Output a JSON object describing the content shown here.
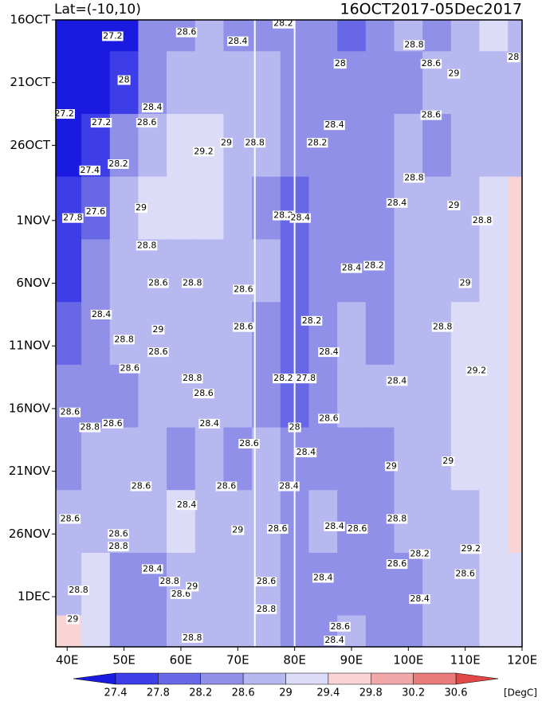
{
  "chart_data": {
    "type": "contour",
    "title": "Lat=(-10,10)",
    "subtitle": "16OCT2017-05Dec2017",
    "unit_label": "[DegC]",
    "x": [
      40,
      45,
      50,
      55,
      60,
      65,
      70,
      75,
      80,
      85,
      90,
      95,
      100,
      105,
      110,
      115,
      120
    ],
    "y": [
      0,
      5,
      10,
      15,
      20,
      25,
      30,
      35,
      40,
      45,
      50
    ],
    "xlim": [
      38,
      120
    ],
    "ylim": [
      0,
      50
    ],
    "xticks": [
      {
        "value": 40,
        "label": "40E"
      },
      {
        "value": 50,
        "label": "50E"
      },
      {
        "value": 60,
        "label": "60E"
      },
      {
        "value": 70,
        "label": "70E"
      },
      {
        "value": 80,
        "label": "80E"
      },
      {
        "value": 90,
        "label": "90E"
      },
      {
        "value": 100,
        "label": "100E"
      },
      {
        "value": 110,
        "label": "110E"
      },
      {
        "value": 120,
        "label": "120E"
      }
    ],
    "yticks": [
      {
        "value": 0,
        "label": "16OCT"
      },
      {
        "value": 5,
        "label": "21OCT"
      },
      {
        "value": 10,
        "label": "26OCT"
      },
      {
        "value": 16,
        "label": "1NOV"
      },
      {
        "value": 21,
        "label": "6NOV"
      },
      {
        "value": 26,
        "label": "11NOV"
      },
      {
        "value": 31,
        "label": "16NOV"
      },
      {
        "value": 36,
        "label": "21NOV"
      },
      {
        "value": 41,
        "label": "26NOV"
      },
      {
        "value": 46,
        "label": "1DEC"
      }
    ],
    "levels": [
      27.4,
      27.8,
      28.2,
      28.6,
      29,
      29.4,
      29.8,
      30.2,
      30.6
    ],
    "colors": [
      "#1a1ae0",
      "#3e3ee8",
      "#6868e6",
      "#9090e8",
      "#b8b8f0",
      "#dcdcf8",
      "#f8d4d4",
      "#f0a8a8",
      "#e87c7c",
      "#e04848",
      "#e01414"
    ],
    "z": [
      [
        27.0,
        27.0,
        27.3,
        28.3,
        28.5,
        28.6,
        28.4,
        28.5,
        28.3,
        28.2,
        28.0,
        28.4,
        28.6,
        28.5,
        28.8,
        29.0,
        28.8
      ],
      [
        27.0,
        27.1,
        27.6,
        28.3,
        28.6,
        28.7,
        28.7,
        28.6,
        28.4,
        28.3,
        28.2,
        28.4,
        28.5,
        28.6,
        28.6,
        28.7,
        28.8
      ],
      [
        27.2,
        27.5,
        28.2,
        28.8,
        29.2,
        29.0,
        28.8,
        28.6,
        28.2,
        28.3,
        28.4,
        28.3,
        28.6,
        28.5,
        28.6,
        28.8,
        28.7
      ],
      [
        27.6,
        27.8,
        28.6,
        29.0,
        29.2,
        29.1,
        28.9,
        28.5,
        28.1,
        28.3,
        28.4,
        28.4,
        28.6,
        28.7,
        28.8,
        29.0,
        29.4
      ],
      [
        27.7,
        28.2,
        28.6,
        28.7,
        28.9,
        28.8,
        28.7,
        28.6,
        28.0,
        28.2,
        28.5,
        28.4,
        28.7,
        28.7,
        28.9,
        29.3,
        29.5
      ],
      [
        28.0,
        28.5,
        28.7,
        28.8,
        28.7,
        28.8,
        28.7,
        28.3,
        27.8,
        28.3,
        28.6,
        28.5,
        28.6,
        28.9,
        29.1,
        29.3,
        29.5
      ],
      [
        28.4,
        28.5,
        28.5,
        28.6,
        28.6,
        28.6,
        28.6,
        28.5,
        28.1,
        28.5,
        28.6,
        28.6,
        28.7,
        28.8,
        29.2,
        29.3,
        29.4
      ],
      [
        28.5,
        28.6,
        28.7,
        28.6,
        28.5,
        28.6,
        28.5,
        28.6,
        28.3,
        28.5,
        28.5,
        28.5,
        28.6,
        28.7,
        29.0,
        29.2,
        29.5
      ],
      [
        28.6,
        28.9,
        28.8,
        28.9,
        29.1,
        28.9,
        28.7,
        28.6,
        28.5,
        28.6,
        28.5,
        28.3,
        28.6,
        28.6,
        28.9,
        29.1,
        29.4
      ],
      [
        28.8,
        29.0,
        28.4,
        28.5,
        28.7,
        28.8,
        28.7,
        28.6,
        28.3,
        28.4,
        28.5,
        28.5,
        28.5,
        28.6,
        28.8,
        29.1,
        29.2
      ],
      [
        29.5,
        29.2,
        28.2,
        28.5,
        28.7,
        28.8,
        28.7,
        28.6,
        28.4,
        28.5,
        28.6,
        28.4,
        28.5,
        28.6,
        28.7,
        29.0,
        29.2
      ]
    ],
    "contour_labels": [
      {
        "x": 48,
        "y": 1.3,
        "value": 27.2
      },
      {
        "x": 61,
        "y": 1,
        "value": 28.6
      },
      {
        "x": 70,
        "y": 1.7,
        "value": 28.4
      },
      {
        "x": 78,
        "y": 0.3,
        "value": 28.2
      },
      {
        "x": 50,
        "y": 4.8,
        "value": 28
      },
      {
        "x": 88,
        "y": 3.5,
        "value": 28
      },
      {
        "x": 101,
        "y": 2,
        "value": 28.8
      },
      {
        "x": 104,
        "y": 3.5,
        "value": 28.6
      },
      {
        "x": 108,
        "y": 4.3,
        "value": 29
      },
      {
        "x": 118.5,
        "y": 3,
        "value": 28
      },
      {
        "x": 39.5,
        "y": 7.5,
        "value": 27.2
      },
      {
        "x": 46,
        "y": 8.2,
        "value": 27.2
      },
      {
        "x": 55,
        "y": 7,
        "value": 28.4
      },
      {
        "x": 54,
        "y": 8.2,
        "value": 28.6
      },
      {
        "x": 64,
        "y": 10.5,
        "value": 29.2
      },
      {
        "x": 68,
        "y": 9.8,
        "value": 29
      },
      {
        "x": 73,
        "y": 9.8,
        "value": 28.8
      },
      {
        "x": 84,
        "y": 9.8,
        "value": 28.2
      },
      {
        "x": 87,
        "y": 8.4,
        "value": 28.4
      },
      {
        "x": 104,
        "y": 7.6,
        "value": 28.6
      },
      {
        "x": 44,
        "y": 12,
        "value": 27.4
      },
      {
        "x": 49,
        "y": 11.5,
        "value": 28.2
      },
      {
        "x": 53,
        "y": 15,
        "value": 29
      },
      {
        "x": 101,
        "y": 12.6,
        "value": 28.8
      },
      {
        "x": 98,
        "y": 14.6,
        "value": 28.4
      },
      {
        "x": 108,
        "y": 14.8,
        "value": 29
      },
      {
        "x": 113,
        "y": 16,
        "value": 28.8
      },
      {
        "x": 41,
        "y": 15.8,
        "value": 27.8
      },
      {
        "x": 45,
        "y": 15.3,
        "value": 27.6
      },
      {
        "x": 78,
        "y": 15.6,
        "value": 28.2
      },
      {
        "x": 81,
        "y": 15.8,
        "value": 28.4
      },
      {
        "x": 54,
        "y": 18,
        "value": 28.8
      },
      {
        "x": 56,
        "y": 21,
        "value": 28.6
      },
      {
        "x": 62,
        "y": 21,
        "value": 28.8
      },
      {
        "x": 71,
        "y": 21.5,
        "value": 28.6
      },
      {
        "x": 90,
        "y": 19.8,
        "value": 28.4
      },
      {
        "x": 94,
        "y": 19.6,
        "value": 28.2
      },
      {
        "x": 110,
        "y": 21,
        "value": 29
      },
      {
        "x": 46,
        "y": 23.5,
        "value": 28.4
      },
      {
        "x": 50,
        "y": 25.5,
        "value": 28.8
      },
      {
        "x": 56,
        "y": 24.7,
        "value": 29
      },
      {
        "x": 71,
        "y": 24.5,
        "value": 28.6
      },
      {
        "x": 83,
        "y": 24,
        "value": 28.2
      },
      {
        "x": 106,
        "y": 24.5,
        "value": 28.8
      },
      {
        "x": 86,
        "y": 26.5,
        "value": 28.4
      },
      {
        "x": 56,
        "y": 26.5,
        "value": 28.6
      },
      {
        "x": 51,
        "y": 27.8,
        "value": 28.6
      },
      {
        "x": 62,
        "y": 28.6,
        "value": 28.8
      },
      {
        "x": 64,
        "y": 29.8,
        "value": 28.6
      },
      {
        "x": 78,
        "y": 28.6,
        "value": 28.2
      },
      {
        "x": 82,
        "y": 28.6,
        "value": 27.8
      },
      {
        "x": 98,
        "y": 28.8,
        "value": 28.4
      },
      {
        "x": 112,
        "y": 28,
        "value": 29.2
      },
      {
        "x": 40.5,
        "y": 31.3,
        "value": 28.6
      },
      {
        "x": 44,
        "y": 32.5,
        "value": 28.8
      },
      {
        "x": 48,
        "y": 32.2,
        "value": 28.6
      },
      {
        "x": 65,
        "y": 32.2,
        "value": 28.4
      },
      {
        "x": 86,
        "y": 31.8,
        "value": 28.6
      },
      {
        "x": 80,
        "y": 32.5,
        "value": 28
      },
      {
        "x": 82,
        "y": 34.5,
        "value": 28.4
      },
      {
        "x": 72,
        "y": 33.8,
        "value": 28.6
      },
      {
        "x": 97,
        "y": 35.6,
        "value": 29
      },
      {
        "x": 107,
        "y": 35.2,
        "value": 29
      },
      {
        "x": 53,
        "y": 37.2,
        "value": 28.6
      },
      {
        "x": 61,
        "y": 38.7,
        "value": 28.4
      },
      {
        "x": 68,
        "y": 37.2,
        "value": 28.6
      },
      {
        "x": 79,
        "y": 37.2,
        "value": 28.4
      },
      {
        "x": 40.5,
        "y": 39.8,
        "value": 28.6
      },
      {
        "x": 49,
        "y": 41,
        "value": 28.6
      },
      {
        "x": 49,
        "y": 42,
        "value": 28.8
      },
      {
        "x": 70,
        "y": 40.7,
        "value": 29
      },
      {
        "x": 77,
        "y": 40.6,
        "value": 28.6
      },
      {
        "x": 87,
        "y": 40.4,
        "value": 28.4
      },
      {
        "x": 91,
        "y": 40.6,
        "value": 28.6
      },
      {
        "x": 98,
        "y": 39.8,
        "value": 28.8
      },
      {
        "x": 111,
        "y": 42.2,
        "value": 29.2
      },
      {
        "x": 55,
        "y": 43.8,
        "value": 28.4
      },
      {
        "x": 58,
        "y": 44.8,
        "value": 28.8
      },
      {
        "x": 60,
        "y": 45.8,
        "value": 28.6
      },
      {
        "x": 62,
        "y": 45.2,
        "value": 29
      },
      {
        "x": 75,
        "y": 44.8,
        "value": 28.6
      },
      {
        "x": 85,
        "y": 44.5,
        "value": 28.4
      },
      {
        "x": 98,
        "y": 43.4,
        "value": 28.6
      },
      {
        "x": 102,
        "y": 42.6,
        "value": 28.2
      },
      {
        "x": 110,
        "y": 44.2,
        "value": 28.6
      },
      {
        "x": 102,
        "y": 46.2,
        "value": 28.4
      },
      {
        "x": 42,
        "y": 45.5,
        "value": 28.8
      },
      {
        "x": 41,
        "y": 47.8,
        "value": 29
      },
      {
        "x": 75,
        "y": 47,
        "value": 28.8
      },
      {
        "x": 88,
        "y": 48.4,
        "value": 28.6
      },
      {
        "x": 62,
        "y": 49.3,
        "value": 28.8
      },
      {
        "x": 87,
        "y": 49.5,
        "value": 28.4
      }
    ]
  }
}
